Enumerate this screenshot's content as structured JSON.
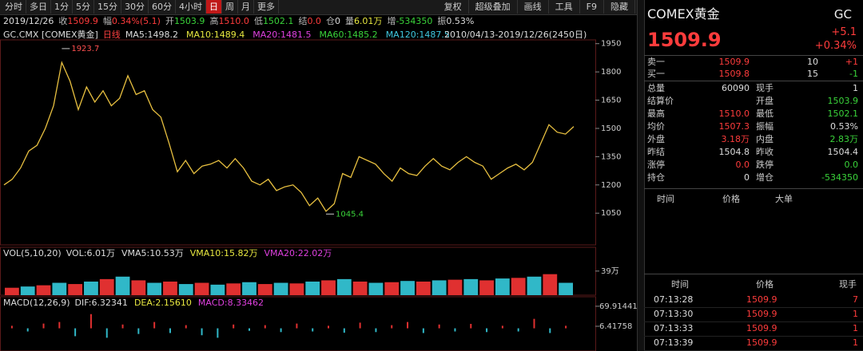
{
  "toolbar": {
    "periods": [
      "分时",
      "多日",
      "1分",
      "5分",
      "15分",
      "30分",
      "60分",
      "4小时",
      "日",
      "周",
      "月",
      "更多"
    ],
    "selected": 8,
    "tools": [
      "复权",
      "超级叠加",
      "画线",
      "工具",
      "F9",
      "隐藏"
    ]
  },
  "info_bar": {
    "date": "2019/12/26",
    "items": [
      {
        "label": "收",
        "value": "1509.9",
        "color": "#ff3c3c"
      },
      {
        "label": "幅",
        "value": "0.34%(5.1)",
        "color": "#ff3c3c"
      },
      {
        "label": "开",
        "value": "1503.9",
        "color": "#3ad43a"
      },
      {
        "label": "高",
        "value": "1510.0",
        "color": "#ff3c3c"
      },
      {
        "label": "低",
        "value": "1502.1",
        "color": "#3ad43a"
      },
      {
        "label": "结",
        "value": "0.0",
        "color": "#ff3c3c"
      },
      {
        "label": "仓",
        "value": "0",
        "color": "#dddddd"
      },
      {
        "label": "量",
        "value": "6.01万",
        "color": "#e8e840"
      },
      {
        "label": "增",
        "value": "-534350",
        "color": "#3ad43a"
      },
      {
        "label": "振",
        "value": "0.53%",
        "color": "#dddddd"
      }
    ]
  },
  "chart": {
    "symbol": "GC.CMX [COMEX黄金]",
    "period": "日线",
    "mas": [
      {
        "text": "MA5:1498.2",
        "color": "#dddddd"
      },
      {
        "text": "MA10:1489.4",
        "color": "#e8e840"
      },
      {
        "text": "MA20:1481.5",
        "color": "#e040e0"
      },
      {
        "text": "MA60:1485.2",
        "color": "#3ad43a"
      },
      {
        "text": "MA120:1487.5",
        "color": "#40c8e0"
      }
    ],
    "range": "2010/04/13-2019/12/26(2450日)",
    "ylim": [
      890,
      1970
    ],
    "yticks": [
      1950,
      1800,
      1650,
      1500,
      1350,
      1200,
      1050
    ],
    "high": 1923.7,
    "low": 1045.4,
    "color": "#ff4040",
    "closes": [
      1200,
      1230,
      1290,
      1380,
      1410,
      1500,
      1620,
      1850,
      1750,
      1600,
      1720,
      1640,
      1700,
      1620,
      1660,
      1780,
      1680,
      1700,
      1600,
      1560,
      1420,
      1270,
      1330,
      1260,
      1300,
      1310,
      1330,
      1290,
      1340,
      1290,
      1220,
      1200,
      1230,
      1170,
      1190,
      1200,
      1160,
      1090,
      1130,
      1060,
      1100,
      1260,
      1240,
      1350,
      1330,
      1310,
      1260,
      1220,
      1290,
      1260,
      1250,
      1300,
      1340,
      1300,
      1280,
      1320,
      1350,
      1320,
      1300,
      1230,
      1260,
      1290,
      1310,
      1280,
      1320,
      1420,
      1520,
      1480,
      1470,
      1510
    ]
  },
  "volume": {
    "title": "VOL(5,10,20)",
    "items": [
      {
        "text": "VOL:6.01万",
        "color": "#dddddd"
      },
      {
        "text": "VMA5:10.53万",
        "color": "#dddddd"
      },
      {
        "text": "VMA10:15.82万",
        "color": "#e8e840"
      },
      {
        "text": "VMA20:22.02万",
        "color": "#e040e0"
      }
    ],
    "ylim": [
      0,
      62
    ],
    "yticks": [
      {
        "value": 39,
        "label": "39万"
      }
    ],
    "values": [
      12,
      14,
      16,
      20,
      18,
      22,
      26,
      30,
      24,
      20,
      22,
      18,
      20,
      17,
      19,
      21,
      18,
      20,
      19,
      22,
      24,
      26,
      22,
      20,
      21,
      23,
      22,
      24,
      25,
      26,
      24,
      27,
      28,
      30,
      34,
      20
    ]
  },
  "macd": {
    "title": "MACD(12,26,9)",
    "items": [
      {
        "text": "DIF:6.32341",
        "color": "#dddddd"
      },
      {
        "text": "DEA:2.15610",
        "color": "#e8e840"
      },
      {
        "text": "MACD:8.33462",
        "color": "#e040e0"
      }
    ],
    "ylim": [
      -72,
      95
    ],
    "yticks": [
      69.91441,
      6.41758
    ],
    "values": [
      8,
      -10,
      15,
      20,
      -25,
      45,
      -30,
      12,
      -18,
      20,
      -15,
      10,
      -22,
      -30,
      12,
      -8,
      10,
      -12,
      15,
      -10,
      8,
      -14,
      18,
      -12,
      10,
      20,
      -15,
      12,
      -10,
      14,
      -12,
      8,
      -10,
      30,
      -15,
      8
    ]
  },
  "quote": {
    "name": "COMEX黄金",
    "code": "GC",
    "price": "1509.9",
    "change": "+5.1",
    "pct": "+0.34%",
    "book": [
      [
        "卖一",
        "1509.9",
        "10",
        "+1"
      ],
      [
        "买一",
        "1509.8",
        "15",
        "-1"
      ]
    ],
    "stats": [
      [
        {
          "label": "总量",
          "value": "60090",
          "color": "#dddddd"
        },
        {
          "label": "现手",
          "value": "1",
          "color": "#dddddd"
        }
      ],
      [
        {
          "label": "结算价"
        },
        {
          "label": "开盘",
          "value": "1503.9",
          "color": "#3ad43a"
        }
      ],
      [
        {
          "label": "最高",
          "value": "1510.0",
          "color": "#ff3c3c"
        },
        {
          "label": "最低",
          "value": "1502.1",
          "color": "#3ad43a"
        }
      ],
      [
        {
          "label": "均价",
          "value": "1507.3",
          "color": "#ff3c3c"
        },
        {
          "label": "振幅",
          "value": "0.53%",
          "color": "#dddddd"
        }
      ],
      [
        {
          "label": "外盘",
          "value": "3.18万",
          "color": "#ff3c3c"
        },
        {
          "label": "内盘",
          "value": "2.83万",
          "color": "#3ad43a"
        }
      ],
      [
        {
          "label": "昨结",
          "value": "1504.8",
          "color": "#dddddd"
        },
        {
          "label": "昨收",
          "value": "1504.4",
          "color": "#dddddd"
        }
      ],
      [
        {
          "label": "涨停",
          "value": "0.0",
          "color": "#ff3c3c"
        },
        {
          "label": "跌停",
          "value": "0.0",
          "color": "#3ad43a"
        }
      ],
      [
        {
          "label": "持仓",
          "value": "0",
          "color": "#dddddd"
        },
        {
          "label": "增仓",
          "value": "-534350",
          "color": "#3ad43a"
        }
      ]
    ],
    "big_header": [
      "时间",
      "价格",
      "大单"
    ],
    "trades_header": [
      "时间",
      "价格",
      "现手"
    ],
    "trades": [
      [
        "07:13:28",
        "1509.9",
        "7"
      ],
      [
        "07:13:30",
        "1509.9",
        "1"
      ],
      [
        "07:13:33",
        "1509.9",
        "1"
      ],
      [
        "07:13:39",
        "1509.9",
        "1"
      ]
    ]
  }
}
